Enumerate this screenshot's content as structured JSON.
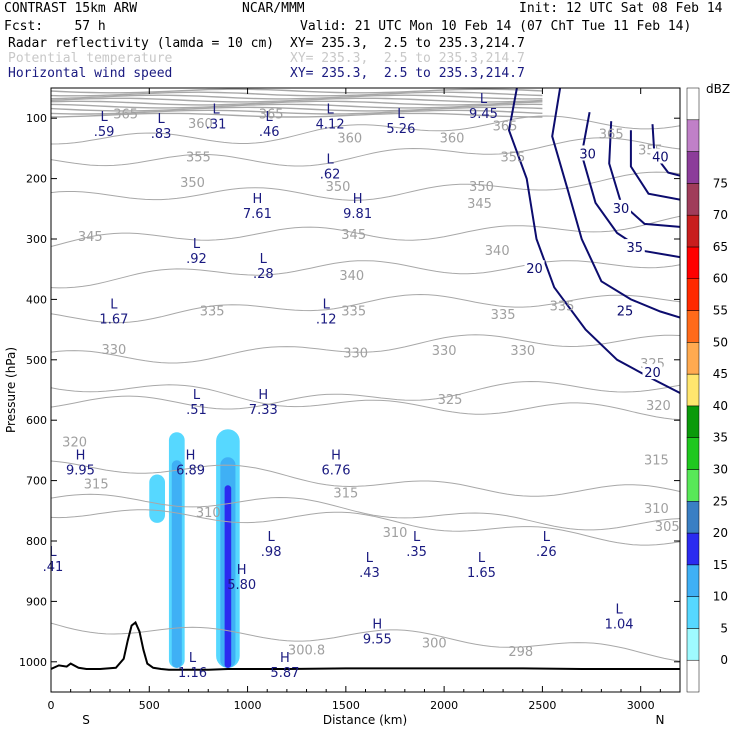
{
  "header": {
    "model": "CONTRAST 15km ARW",
    "org": "NCAR/MMM",
    "init": "Init: 12 UTC Sat 08 Feb 14",
    "fcst": "Fcst:    57 h",
    "valid": "Valid: 21 UTC Mon 10 Feb 14 (07 ChT Tue 11 Feb 14)",
    "fields": [
      {
        "name": "Radar reflectivity (lamda = 10 cm)",
        "xy": "XY= 235.3,  2.5 to 235.3,214.7",
        "color": "#000000"
      },
      {
        "name": "Potential temperature",
        "xy": "XY= 235.3,  2.5 to 235.3,214.7",
        "color": "#c8c8c8"
      },
      {
        "name": "Horizontal wind speed",
        "xy": "XY= 235.3,  2.5 to 235.3,214.7",
        "color": "#1a1a80"
      }
    ]
  },
  "colors": {
    "theta": "#a8a8a8",
    "wind": "#0c0c6e",
    "extrema": "#1a1a80",
    "terrain": "#000000"
  },
  "chart_data": {
    "type": "cross-section",
    "xlabel": "Distance (km)",
    "ylabel": "Pressure (hPa)",
    "xlim": [
      0,
      3200
    ],
    "ylim": [
      1050,
      50
    ],
    "xticks": [
      0,
      500,
      1000,
      1500,
      2000,
      2500,
      3000
    ],
    "yticks": [
      100,
      200,
      300,
      400,
      500,
      600,
      700,
      800,
      900,
      1000
    ],
    "x_end_labels": {
      "left": "S",
      "right": "N"
    },
    "colorbar": {
      "unit": "dBZ",
      "levels": [
        0,
        5,
        10,
        15,
        20,
        25,
        30,
        35,
        40,
        45,
        50,
        55,
        60,
        65,
        70,
        75
      ],
      "colors": [
        "#ffffff",
        "#9ffaff",
        "#56d8ff",
        "#3fb0f5",
        "#2b2bf0",
        "#3a7fc4",
        "#58e858",
        "#1fc81f",
        "#0a9a0a",
        "#ffe66e",
        "#ffaa50",
        "#ff6a1a",
        "#ff2a00",
        "#ff0000",
        "#c81e1e",
        "#a03c5a",
        "#8c3c9a",
        "#c080c8",
        "#ffffff"
      ]
    },
    "reflectivity": [
      {
        "x_km": [
          600,
          680
        ],
        "p_hPa": [
          620,
          1010
        ],
        "max_dBZ": 10
      },
      {
        "x_km": [
          840,
          960
        ],
        "p_hPa": [
          615,
          1010
        ],
        "max_dBZ": 15
      },
      {
        "x_km": [
          500,
          580
        ],
        "p_hPa": [
          690,
          770
        ],
        "max_dBZ": 5
      }
    ],
    "theta_contours": [
      {
        "value": 300,
        "label_x_km": 1950,
        "label_p_hPa": 960
      },
      {
        "value": 305,
        "label_x_km": 3140,
        "label_p_hPa": 770
      },
      {
        "value": 310,
        "label_x_km": 800,
        "label_p_hPa": 750
      },
      {
        "value": 315,
        "label_x_km": 1500,
        "label_p_hPa": 700
      },
      {
        "value": 320,
        "label_x_km": 3090,
        "label_p_hPa": 570
      },
      {
        "value": 325,
        "label_x_km": 2030,
        "label_p_hPa": 560
      },
      {
        "value": 330,
        "label_x_km": 1550,
        "label_p_hPa": 480
      },
      {
        "value": 335,
        "label_x_km": 1540,
        "label_p_hPa": 410
      },
      {
        "value": 340,
        "label_x_km": 1530,
        "label_p_hPa": 350
      },
      {
        "value": 345,
        "label_x_km": 1540,
        "label_p_hPa": 290
      },
      {
        "value": 350,
        "label_x_km": 1460,
        "label_p_hPa": 220
      },
      {
        "value": 355,
        "label_x_km": 760,
        "label_p_hPa": 160
      },
      {
        "value": 360,
        "label_x_km": 1530,
        "label_p_hPa": 120
      }
    ],
    "theta_labels": [
      {
        "text": "300",
        "x_km": 1950,
        "p_hPa": 968
      },
      {
        "text": "298",
        "x_km": 2390,
        "p_hPa": 982
      },
      {
        "text": "300.8",
        "x_km": 1300,
        "p_hPa": 980
      },
      {
        "text": "305",
        "x_km": 3135,
        "p_hPa": 775
      },
      {
        "text": "310",
        "x_km": 800,
        "p_hPa": 752
      },
      {
        "text": "310",
        "x_km": 1750,
        "p_hPa": 785
      },
      {
        "text": "310",
        "x_km": 3080,
        "p_hPa": 745
      },
      {
        "text": "315",
        "x_km": 230,
        "p_hPa": 705
      },
      {
        "text": "315",
        "x_km": 1500,
        "p_hPa": 720
      },
      {
        "text": "315",
        "x_km": 3080,
        "p_hPa": 665
      },
      {
        "text": "320",
        "x_km": 120,
        "p_hPa": 635
      },
      {
        "text": "320",
        "x_km": 3090,
        "p_hPa": 575
      },
      {
        "text": "325",
        "x_km": 2030,
        "p_hPa": 565
      },
      {
        "text": "325",
        "x_km": 3060,
        "p_hPa": 505
      },
      {
        "text": "330",
        "x_km": 320,
        "p_hPa": 482
      },
      {
        "text": "330",
        "x_km": 1550,
        "p_hPa": 488
      },
      {
        "text": "330",
        "x_km": 2000,
        "p_hPa": 484
      },
      {
        "text": "330",
        "x_km": 2400,
        "p_hPa": 484
      },
      {
        "text": "335",
        "x_km": 820,
        "p_hPa": 418
      },
      {
        "text": "335",
        "x_km": 1540,
        "p_hPa": 418
      },
      {
        "text": "335",
        "x_km": 2300,
        "p_hPa": 424
      },
      {
        "text": "335",
        "x_km": 2600,
        "p_hPa": 410
      },
      {
        "text": "340",
        "x_km": 1530,
        "p_hPa": 360
      },
      {
        "text": "340",
        "x_km": 2270,
        "p_hPa": 318
      },
      {
        "text": "345",
        "x_km": 200,
        "p_hPa": 295
      },
      {
        "text": "345",
        "x_km": 1540,
        "p_hPa": 292
      },
      {
        "text": "345",
        "x_km": 2180,
        "p_hPa": 240
      },
      {
        "text": "350",
        "x_km": 720,
        "p_hPa": 206
      },
      {
        "text": "350",
        "x_km": 1460,
        "p_hPa": 212
      },
      {
        "text": "350",
        "x_km": 2190,
        "p_hPa": 212
      },
      {
        "text": "355",
        "x_km": 750,
        "p_hPa": 163
      },
      {
        "text": "355",
        "x_km": 2350,
        "p_hPa": 163
      },
      {
        "text": "355",
        "x_km": 3050,
        "p_hPa": 152
      },
      {
        "text": "360",
        "x_km": 760,
        "p_hPa": 108
      },
      {
        "text": "360",
        "x_km": 1520,
        "p_hPa": 132
      },
      {
        "text": "360",
        "x_km": 2040,
        "p_hPa": 132
      },
      {
        "text": "365",
        "x_km": 2310,
        "p_hPa": 112
      },
      {
        "text": "365",
        "x_km": 2850,
        "p_hPa": 125
      },
      {
        "text": "365",
        "x_km": 380,
        "p_hPa": 92
      },
      {
        "text": "365",
        "x_km": 1120,
        "p_hPa": 92
      }
    ],
    "wind_contours": {
      "levels": [
        20,
        25,
        30,
        35,
        40
      ],
      "labels": [
        {
          "text": "20",
          "x_km": 2460,
          "p_hPa": 350
        },
        {
          "text": "20",
          "x_km": 3060,
          "p_hPa": 522
        },
        {
          "text": "25",
          "x_km": 2920,
          "p_hPa": 420
        },
        {
          "text": "30",
          "x_km": 2730,
          "p_hPa": 160
        },
        {
          "text": "30",
          "x_km": 2900,
          "p_hPa": 250
        },
        {
          "text": "35",
          "x_km": 2970,
          "p_hPa": 315
        },
        {
          "text": "40",
          "x_km": 3100,
          "p_hPa": 165
        }
      ]
    },
    "extrema": [
      {
        "kind": "L",
        "value": ".59",
        "x_km": 270,
        "p_hPa": 105
      },
      {
        "kind": "L",
        "value": ".83",
        "x_km": 560,
        "p_hPa": 108
      },
      {
        "kind": "L",
        "value": ".31",
        "x_km": 840,
        "p_hPa": 92
      },
      {
        "kind": "L",
        "value": ".46",
        "x_km": 1110,
        "p_hPa": 105
      },
      {
        "kind": "L",
        "value": "4.12",
        "x_km": 1420,
        "p_hPa": 92
      },
      {
        "kind": "L",
        "value": "5.26",
        "x_km": 1780,
        "p_hPa": 100
      },
      {
        "kind": "L",
        "value": "9.45",
        "x_km": 2200,
        "p_hPa": 75
      },
      {
        "kind": "L",
        "value": ".62",
        "x_km": 1420,
        "p_hPa": 175
      },
      {
        "kind": "H",
        "value": "7.61",
        "x_km": 1050,
        "p_hPa": 240
      },
      {
        "kind": "H",
        "value": "9.81",
        "x_km": 1560,
        "p_hPa": 240
      },
      {
        "kind": "L",
        "value": ".92",
        "x_km": 740,
        "p_hPa": 315
      },
      {
        "kind": "L",
        "value": ".28",
        "x_km": 1080,
        "p_hPa": 340
      },
      {
        "kind": "L",
        "value": "1.67",
        "x_km": 320,
        "p_hPa": 415
      },
      {
        "kind": "L",
        "value": ".12",
        "x_km": 1400,
        "p_hPa": 415
      },
      {
        "kind": "L",
        "value": ".51",
        "x_km": 740,
        "p_hPa": 565
      },
      {
        "kind": "H",
        "value": "7.33",
        "x_km": 1080,
        "p_hPa": 565
      },
      {
        "kind": "H",
        "value": "9.95",
        "x_km": 150,
        "p_hPa": 665
      },
      {
        "kind": "H",
        "value": "6.89",
        "x_km": 710,
        "p_hPa": 665
      },
      {
        "kind": "H",
        "value": "6.76",
        "x_km": 1450,
        "p_hPa": 665
      },
      {
        "kind": "L",
        "value": ".41",
        "x_km": 10,
        "p_hPa": 825
      },
      {
        "kind": "L",
        "value": ".98",
        "x_km": 1120,
        "p_hPa": 800
      },
      {
        "kind": "L",
        "value": ".43",
        "x_km": 1620,
        "p_hPa": 835
      },
      {
        "kind": "L",
        "value": ".35",
        "x_km": 1860,
        "p_hPa": 800
      },
      {
        "kind": "L",
        "value": "1.65",
        "x_km": 2190,
        "p_hPa": 835
      },
      {
        "kind": "L",
        "value": ".26",
        "x_km": 2520,
        "p_hPa": 800
      },
      {
        "kind": "H",
        "value": "5.80",
        "x_km": 970,
        "p_hPa": 855
      },
      {
        "kind": "L",
        "value": "1.04",
        "x_km": 2890,
        "p_hPa": 920
      },
      {
        "kind": "H",
        "value": "9.55",
        "x_km": 1660,
        "p_hPa": 945
      },
      {
        "kind": "L",
        "value": "1.16",
        "x_km": 720,
        "p_hPa": 1000
      },
      {
        "kind": "H",
        "value": "5.87",
        "x_km": 1190,
        "p_hPa": 1000
      }
    ],
    "terrain": {
      "x_km": [
        0,
        40,
        80,
        100,
        140,
        180,
        250,
        330,
        370,
        390,
        410,
        430,
        450,
        470,
        490,
        520,
        560,
        600,
        700,
        800,
        900,
        1000,
        1200,
        1500,
        1800,
        2100,
        2400,
        2700,
        3000,
        3200
      ],
      "p_hPa": [
        1012,
        1006,
        1008,
        1003,
        1010,
        1012,
        1012,
        1010,
        995,
        965,
        940,
        935,
        950,
        980,
        1003,
        1010,
        1012,
        1013,
        1013,
        1013,
        1012,
        1012,
        1012,
        1011,
        1011,
        1011,
        1011,
        1012,
        1012,
        1012
      ]
    }
  }
}
